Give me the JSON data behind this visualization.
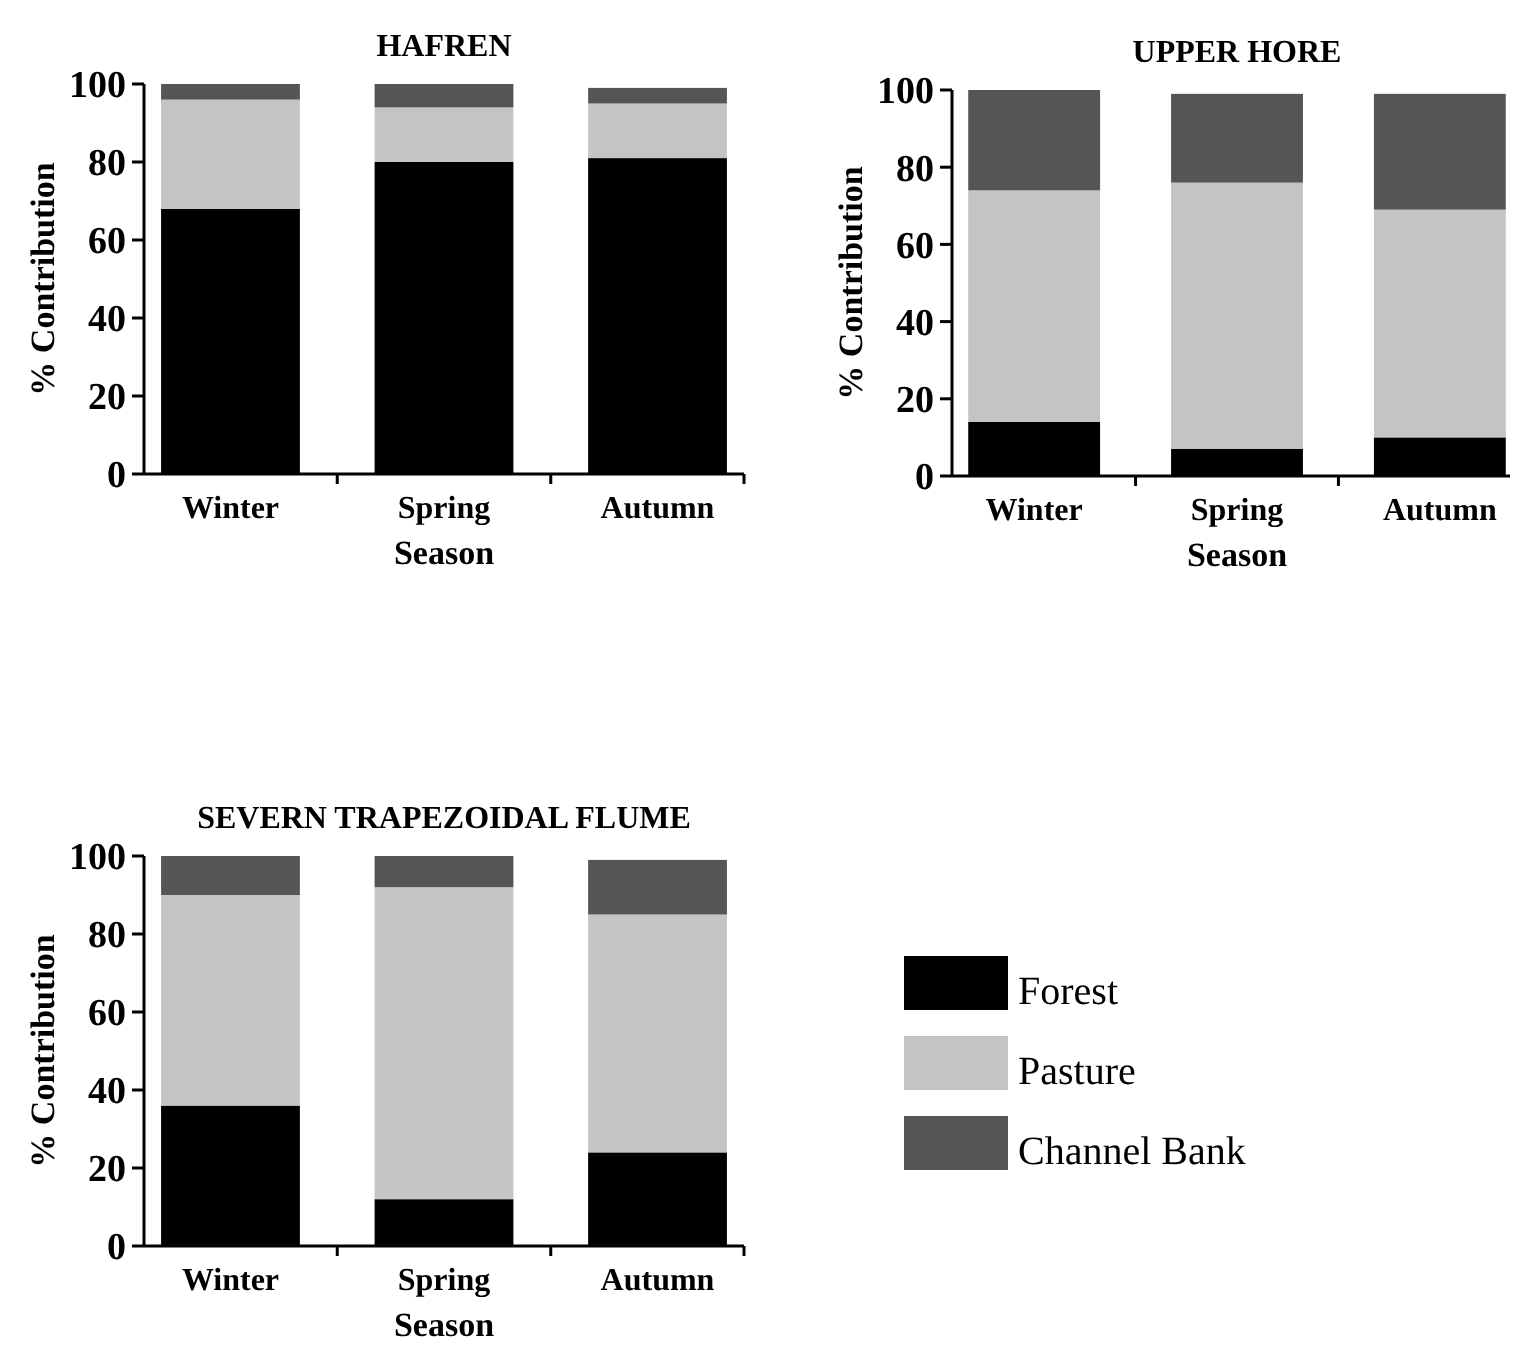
{
  "chart_data": [
    {
      "type": "bar",
      "stacked": true,
      "title": "HAFREN",
      "xlabel": "Season",
      "ylabel": "% Contribution",
      "categories": [
        "Winter",
        "Spring",
        "Autumn"
      ],
      "ylim": [
        0,
        100
      ],
      "yticks": [
        0,
        20,
        40,
        60,
        80,
        100
      ],
      "legend": false,
      "series": [
        {
          "color": "#000000",
          "values": [
            68,
            80,
            81
          ]
        },
        {
          "color": "#c4c4c4",
          "values": [
            28,
            14,
            14
          ]
        },
        {
          "color": "#555555",
          "values": [
            4,
            6,
            4
          ]
        }
      ]
    },
    {
      "type": "bar",
      "stacked": true,
      "title": "UPPER HORE",
      "xlabel": "Season",
      "ylabel": "% Contribution",
      "categories": [
        "Winter",
        "Spring",
        "Autumn"
      ],
      "ylim": [
        0,
        100
      ],
      "yticks": [
        0,
        20,
        40,
        60,
        80,
        100
      ],
      "legend": false,
      "series": [
        {
          "color": "#000000",
          "values": [
            14,
            7,
            10
          ]
        },
        {
          "color": "#c4c4c4",
          "values": [
            60,
            69,
            59
          ]
        },
        {
          "color": "#555555",
          "values": [
            26,
            23,
            30
          ]
        }
      ]
    },
    {
      "type": "bar",
      "stacked": true,
      "title": "SEVERN TRAPEZOIDAL FLUME",
      "xlabel": "Season",
      "ylabel": "% Contribution",
      "categories": [
        "Winter",
        "Spring",
        "Autumn"
      ],
      "ylim": [
        0,
        100
      ],
      "yticks": [
        0,
        20,
        40,
        60,
        80,
        100
      ],
      "legend": "right",
      "series": [
        {
          "name": "Forest",
          "color": "#000000",
          "values": [
            36,
            12,
            24
          ]
        },
        {
          "name": "Pasture",
          "color": "#c4c4c4",
          "values": [
            54,
            80,
            61
          ]
        },
        {
          "name": "Channel Bank",
          "color": "#555555",
          "values": [
            10,
            8,
            14
          ]
        }
      ]
    }
  ]
}
